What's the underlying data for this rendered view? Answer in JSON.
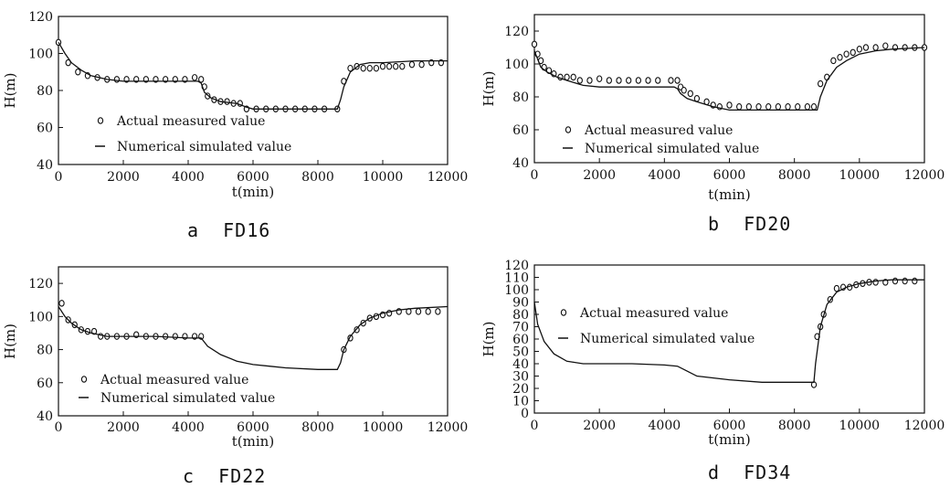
{
  "chart_data": [
    {
      "type": "scatter",
      "panel_label": "a  FD16",
      "xlabel": "t(min)",
      "ylabel": "H(m)",
      "xlim": [
        0,
        12000
      ],
      "ylim": [
        40,
        120
      ],
      "xticks": [
        "0",
        "2000",
        "4000",
        "6000",
        "8000",
        "10000",
        "12000"
      ],
      "yticks": [
        "40",
        "60",
        "80",
        "100",
        "120"
      ],
      "legend": [
        "Actual measured value",
        "Numerical simulated value"
      ],
      "series": [
        {
          "name": "Actual measured value",
          "style": "open-circle",
          "x": [
            0,
            300,
            600,
            900,
            1200,
            1500,
            1800,
            2100,
            2400,
            2700,
            3000,
            3300,
            3600,
            3900,
            4200,
            4400,
            4500,
            4600,
            4800,
            5000,
            5200,
            5400,
            5600,
            5800,
            6100,
            6400,
            6700,
            7000,
            7300,
            7600,
            7900,
            8200,
            8600,
            8800,
            9000,
            9200,
            9400,
            9600,
            9800,
            10000,
            10200,
            10400,
            10600,
            10900,
            11200,
            11500,
            11800
          ],
          "y": [
            106,
            95,
            90,
            88,
            87,
            86,
            86,
            86,
            86,
            86,
            86,
            86,
            86,
            86,
            87,
            86,
            82,
            77,
            75,
            74,
            74,
            73,
            73,
            70,
            70,
            70,
            70,
            70,
            70,
            70,
            70,
            70,
            70,
            85,
            92,
            93,
            92,
            92,
            92,
            93,
            93,
            93,
            93,
            94,
            94,
            95,
            95
          ]
        },
        {
          "name": "Numerical simulated value",
          "style": "line",
          "x": [
            0,
            200,
            400,
            700,
            1000,
            1500,
            2000,
            3000,
            4000,
            4300,
            4400,
            4500,
            4700,
            5000,
            5500,
            5800,
            6000,
            7000,
            8000,
            8600,
            8700,
            8800,
            9000,
            9300,
            9600,
            10000,
            11000,
            12000
          ],
          "y": [
            106,
            100,
            95,
            91,
            88,
            86,
            85,
            85,
            85,
            85,
            84,
            79,
            76,
            74,
            73,
            71,
            70,
            70,
            70,
            70,
            75,
            82,
            90,
            94,
            95,
            95,
            96,
            96
          ]
        }
      ]
    },
    {
      "type": "scatter",
      "panel_label": "b  FD20",
      "xlabel": "t(min)",
      "ylabel": "H(m)",
      "xlim": [
        0,
        12000
      ],
      "ylim": [
        40,
        130
      ],
      "xticks": [
        "0",
        "2000",
        "4000",
        "6000",
        "8000",
        "10000",
        "12000"
      ],
      "yticks": [
        "40",
        "60",
        "80",
        "100",
        "120"
      ],
      "legend": [
        "Actual measured value",
        "Numerical simulated value"
      ],
      "series": [
        {
          "name": "Actual measured value",
          "style": "open-circle",
          "x": [
            0,
            100,
            200,
            300,
            450,
            600,
            800,
            1000,
            1200,
            1400,
            1700,
            2000,
            2300,
            2600,
            2900,
            3200,
            3500,
            3800,
            4200,
            4400,
            4500,
            4600,
            4800,
            5000,
            5300,
            5500,
            5700,
            6000,
            6300,
            6600,
            6900,
            7200,
            7500,
            7800,
            8100,
            8400,
            8600,
            8800,
            9000,
            9200,
            9400,
            9600,
            9800,
            10000,
            10200,
            10500,
            10800,
            11100,
            11400,
            11700,
            12000
          ],
          "y": [
            112,
            106,
            102,
            98,
            96,
            94,
            92,
            92,
            92,
            90,
            90,
            91,
            90,
            90,
            90,
            90,
            90,
            90,
            90,
            90,
            86,
            84,
            82,
            79,
            77,
            75,
            74,
            75,
            74,
            74,
            74,
            74,
            74,
            74,
            74,
            74,
            74,
            88,
            92,
            102,
            104,
            106,
            107,
            109,
            110,
            110,
            111,
            110,
            110,
            110,
            110
          ]
        },
        {
          "name": "Numerical simulated value",
          "style": "line",
          "x": [
            0,
            200,
            400,
            700,
            1000,
            1500,
            2000,
            3000,
            4000,
            4300,
            4400,
            4500,
            4700,
            5000,
            5500,
            6000,
            7000,
            8000,
            8700,
            8800,
            9000,
            9300,
            9600,
            10000,
            10500,
            11000,
            12000
          ],
          "y": [
            108,
            98,
            95,
            92,
            90,
            87,
            86,
            86,
            86,
            86,
            85,
            82,
            79,
            77,
            74,
            72,
            72,
            72,
            72,
            80,
            90,
            98,
            102,
            106,
            108,
            109,
            110
          ]
        }
      ]
    },
    {
      "type": "scatter",
      "panel_label": "c  FD22",
      "xlabel": "t(min)",
      "ylabel": "H(m)",
      "xlim": [
        0,
        12000
      ],
      "ylim": [
        40,
        130
      ],
      "xticks": [
        "0",
        "2000",
        "4000",
        "6000",
        "8000",
        "10000",
        "12000"
      ],
      "yticks": [
        "40",
        "60",
        "80",
        "100",
        "120"
      ],
      "legend": [
        "Actual measured value",
        "Numerical simulated value"
      ],
      "series": [
        {
          "name": "Actual measured value",
          "style": "open-circle",
          "x": [
            100,
            300,
            500,
            700,
            900,
            1100,
            1300,
            1500,
            1800,
            2100,
            2400,
            2700,
            3000,
            3300,
            3600,
            3900,
            4200,
            4400,
            8800,
            9000,
            9200,
            9400,
            9600,
            9800,
            10000,
            10200,
            10500,
            10800,
            11100,
            11400,
            11700
          ],
          "y": [
            108,
            98,
            95,
            92,
            91,
            91,
            88,
            88,
            88,
            88,
            89,
            88,
            88,
            88,
            88,
            88,
            88,
            88,
            80,
            87,
            92,
            96,
            99,
            100,
            101,
            102,
            103,
            103,
            103,
            103,
            103
          ]
        },
        {
          "name": "Numerical simulated value",
          "style": "line",
          "x": [
            0,
            200,
            400,
            700,
            1000,
            1500,
            2000,
            3000,
            4000,
            4400,
            4600,
            5000,
            5500,
            6000,
            6500,
            7000,
            8000,
            8600,
            8700,
            8800,
            9000,
            9300,
            9600,
            10000,
            10500,
            11000,
            12000
          ],
          "y": [
            106,
            100,
            96,
            92,
            90,
            88,
            88,
            88,
            87,
            87,
            82,
            77,
            73,
            71,
            70,
            69,
            68,
            68,
            72,
            80,
            88,
            95,
            99,
            102,
            104,
            105,
            106
          ]
        }
      ]
    },
    {
      "type": "scatter",
      "panel_label": "d  FD34",
      "xlabel": "t(min)",
      "ylabel": "H(m)",
      "xlim": [
        0,
        12000
      ],
      "ylim": [
        0,
        120
      ],
      "xticks": [
        "0",
        "2000",
        "4000",
        "6000",
        "8000",
        "10000",
        "12000"
      ],
      "yticks": [
        "0",
        "10",
        "20",
        "30",
        "40",
        "50",
        "60",
        "70",
        "80",
        "90",
        "100",
        "110",
        "120"
      ],
      "legend": [
        "Actual measured value",
        "Numerical simulated value"
      ],
      "series": [
        {
          "name": "Actual measured value",
          "style": "open-circle",
          "x": [
            8600,
            8700,
            8800,
            8900,
            9100,
            9300,
            9500,
            9700,
            9900,
            10100,
            10300,
            10500,
            10800,
            11100,
            11400,
            11700
          ],
          "y": [
            23,
            62,
            70,
            80,
            92,
            101,
            102,
            102,
            104,
            105,
            106,
            106,
            106,
            107,
            107,
            107
          ]
        },
        {
          "name": "Numerical simulated value",
          "style": "line",
          "x": [
            0,
            100,
            300,
            600,
            1000,
            1500,
            2000,
            3000,
            4000,
            4400,
            4700,
            5000,
            6000,
            7000,
            8000,
            8600,
            8650,
            8800,
            9000,
            9300,
            9600,
            10000,
            10500,
            11000,
            12000
          ],
          "y": [
            90,
            72,
            58,
            48,
            42,
            40,
            40,
            40,
            39,
            38,
            34,
            30,
            27,
            25,
            25,
            25,
            40,
            70,
            88,
            98,
            102,
            105,
            107,
            108,
            108
          ]
        }
      ]
    }
  ]
}
